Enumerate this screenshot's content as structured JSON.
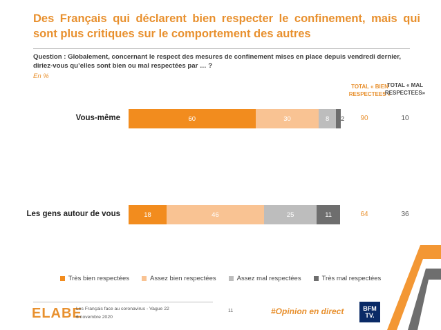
{
  "header": {
    "title": "Des Français qui déclarent bien respecter le confinement, mais qui sont plus critiques sur le comportement des autres"
  },
  "question": "Question : Globalement, concernant le respect des mesures de confinement mises en place depuis vendredi dernier, diriez-vous qu’elles sont bien ou mal respectées par … ?",
  "unit": "En %",
  "columns": {
    "bien": "TOTAL « BIEN RESPECTEES »",
    "mal": "TOTAL « MAL RESPECTEES»"
  },
  "colors": {
    "accent": "#E8902E",
    "tres_bien": "#F28C1E",
    "assez_bien": "#F9C393",
    "assez_mal": "#BDBDBD",
    "tres_mal": "#6E6E6E"
  },
  "chart_data": {
    "type": "bar",
    "orientation": "horizontal",
    "stacked": true,
    "categories": [
      "Vous-même",
      "Les gens autour de vous"
    ],
    "series": [
      {
        "name": "Très bien respectées",
        "values": [
          60,
          18
        ]
      },
      {
        "name": "Assez bien respectées",
        "values": [
          30,
          46
        ]
      },
      {
        "name": "Assez mal respectées",
        "values": [
          8,
          25
        ]
      },
      {
        "name": "Très mal respectées",
        "values": [
          2,
          11
        ]
      }
    ],
    "totals_bien": [
      90,
      64
    ],
    "totals_mal": [
      10,
      36
    ],
    "legend": "bottom",
    "xlim": [
      0,
      100
    ],
    "grid": false
  },
  "footer": {
    "brand": "ELABE",
    "source": "Les Français face au coronavirus - Vague 22",
    "date": "6 novembre 2020",
    "page": "11",
    "hashtag": "#Opinion en direct",
    "logo_top": "BFM",
    "logo_bottom": "TV."
  }
}
